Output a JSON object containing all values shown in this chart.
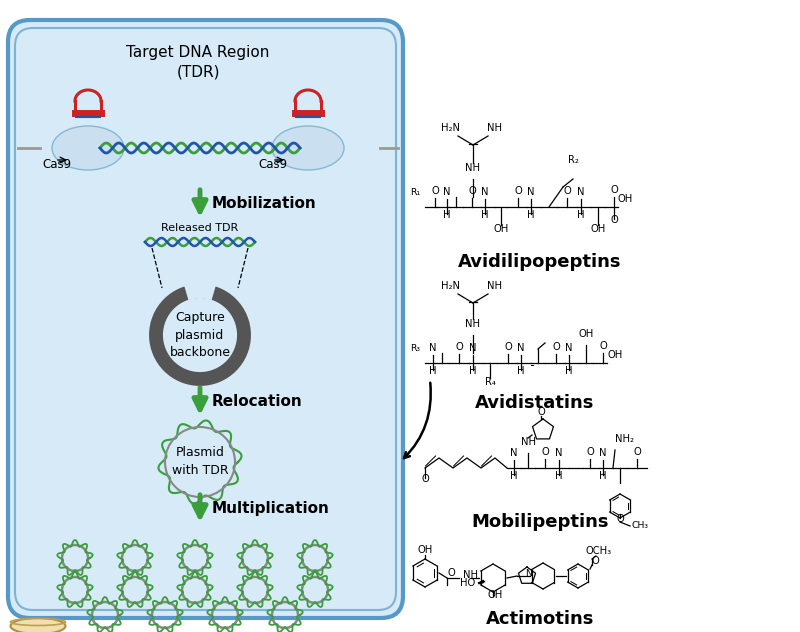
{
  "bg_color": "#ffffff",
  "cell_bg": "#d6eaf8",
  "cell_border": "#7fb3d3",
  "cell_border2": "#5499c7",
  "arrow_color": "#3a9e3a",
  "plasmid_color": "#666666",
  "plasmid_green": "#3a9e3a",
  "dna_green": "#3a9e3a",
  "dna_blue": "#2255aa",
  "dna_red": "#cc2222",
  "text_color": "#000000",
  "label_mobilization": "Mobilization",
  "label_relocation": "Relocation",
  "label_multiplication": "Multiplication",
  "label_tdr": "Target DNA Region\n(TDR)",
  "label_released": "Released TDR",
  "label_capture": "Capture\nplasmid\nbackbone",
  "label_plasmid": "Plasmid\nwith TDR",
  "label_cas9_1": "Cas9",
  "label_cas9_2": "Cas9",
  "compound1": "Avidilipopeptins",
  "compound2": "Avidistatins",
  "compound3": "Mobilipeptins",
  "compound4": "Actimotins"
}
